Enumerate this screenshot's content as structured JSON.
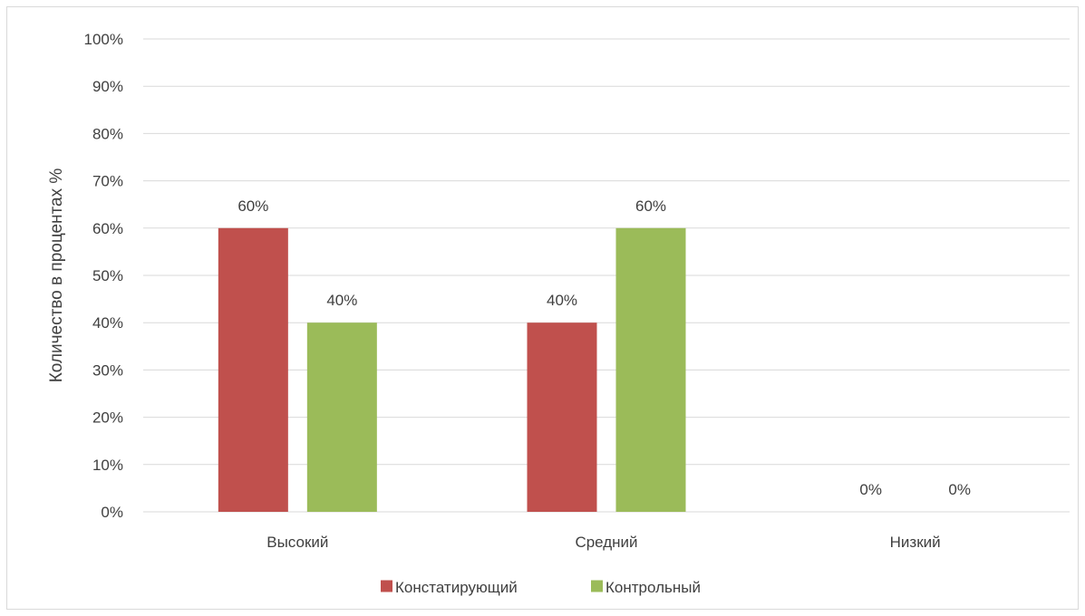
{
  "chart_data": {
    "type": "bar",
    "categories": [
      "Высокий",
      "Средний",
      "Низкий"
    ],
    "series": [
      {
        "name": "Констатирующий",
        "values": [
          60,
          40,
          0
        ],
        "color": "#C0504D"
      },
      {
        "name": "Контрольный",
        "values": [
          40,
          60,
          0
        ],
        "color": "#9BBB59"
      }
    ],
    "ylabel": "Количество в процентах %",
    "ylim": [
      0,
      100
    ],
    "yticks": [
      "0%",
      "10%",
      "20%",
      "30%",
      "40%",
      "50%",
      "60%",
      "70%",
      "80%",
      "90%",
      "100%"
    ],
    "data_labels": [
      [
        "60%",
        "40%",
        "0%"
      ],
      [
        "40%",
        "60%",
        "0%"
      ]
    ],
    "grid": true,
    "legend_position": "bottom"
  }
}
